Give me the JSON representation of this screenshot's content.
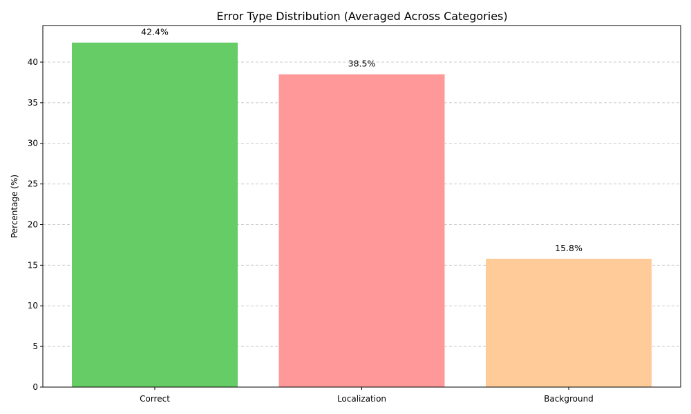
{
  "chart_data": {
    "type": "bar",
    "title": "Error Type Distribution (Averaged Across Categories)",
    "xlabel": "",
    "ylabel": "Percentage (%)",
    "categories": [
      "Correct",
      "Localization",
      "Background"
    ],
    "values": [
      42.4,
      38.5,
      15.8
    ],
    "data_labels": [
      "42.4%",
      "38.5%",
      "15.8%"
    ],
    "colors": [
      "#66cc66",
      "#ff9999",
      "#ffcc99"
    ],
    "ylim": [
      0,
      44.5
    ],
    "yticks": [
      0,
      5,
      10,
      15,
      20,
      25,
      30,
      35,
      40
    ],
    "grid": "y-dashed",
    "legend": "none"
  }
}
